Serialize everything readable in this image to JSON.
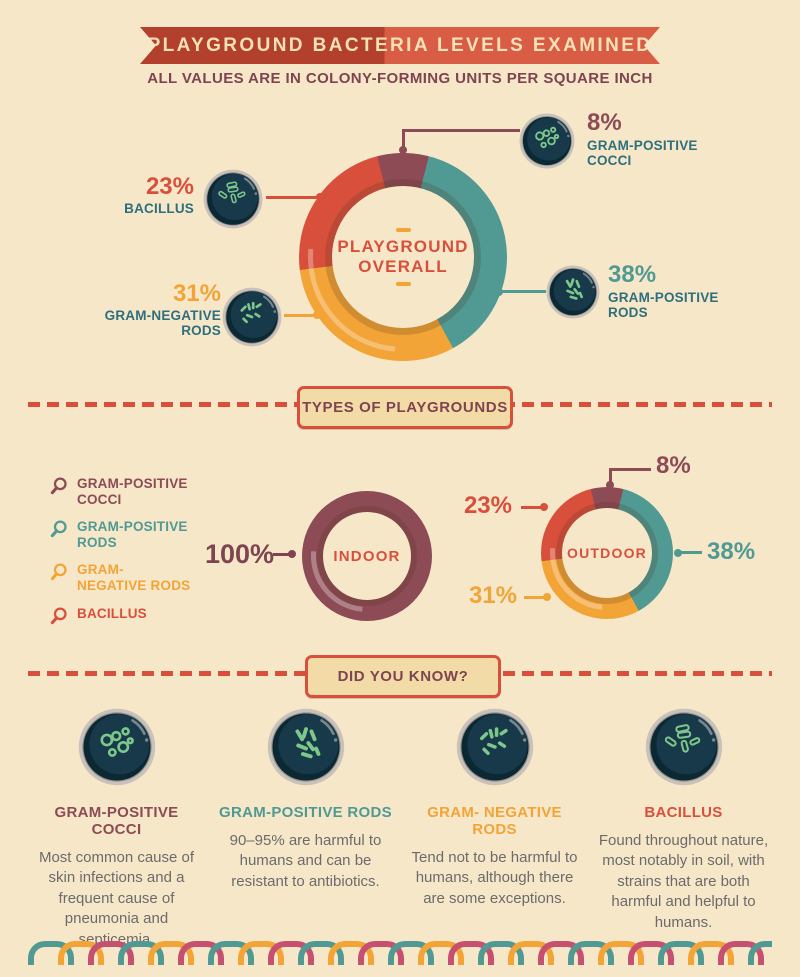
{
  "page": {
    "background": "#f7e7c9"
  },
  "palette": {
    "maroon": "#8c4b55",
    "teal": "#509a93",
    "orange": "#f2a437",
    "red": "#d8503c",
    "ribbon_dark": "#b33f2d",
    "ribbon_light": "#d95d45",
    "cream_text": "#f4e2b6",
    "heading_maroon": "#7e4450",
    "label_teal": "#2e6f7e",
    "body_gray": "#6b6b6b",
    "scallop_pink": "#c65070"
  },
  "header": {
    "title": "PLAYGROUND BACTERIA LEVELS EXAMINED",
    "subtitle": "ALL VALUES ARE IN COLONY-FORMING UNITS PER SQUARE INCH"
  },
  "chart_data": [
    {
      "type": "pie",
      "variant": "donut",
      "title": "PLAYGROUND OVERALL",
      "units": "percent of colony-forming units per square inch",
      "labels": [
        "GRAM-POSITIVE COCCI",
        "GRAM-POSITIVE RODS",
        "GRAM-NEGATIVE RODS",
        "BACILLUS"
      ],
      "values": [
        8,
        38,
        31,
        23
      ],
      "colors": [
        "#8c4b55",
        "#509a93",
        "#f2a437",
        "#d8503c"
      ]
    },
    {
      "type": "pie",
      "variant": "donut",
      "title": "INDOOR",
      "units": "percent of colony-forming units per square inch",
      "labels": [
        "GRAM-POSITIVE COCCI"
      ],
      "values": [
        100
      ],
      "colors": [
        "#8c4b55"
      ]
    },
    {
      "type": "pie",
      "variant": "donut",
      "title": "OUTDOOR",
      "units": "percent of colony-forming units per square inch",
      "labels": [
        "GRAM-POSITIVE COCCI",
        "GRAM-POSITIVE RODS",
        "GRAM-NEGATIVE RODS",
        "BACILLUS"
      ],
      "values": [
        8,
        38,
        31,
        23
      ],
      "colors": [
        "#8c4b55",
        "#509a93",
        "#f2a437",
        "#d8503c"
      ]
    }
  ],
  "overall": {
    "center_line1": "PLAYGROUND",
    "center_line2": "OVERALL",
    "callouts": [
      {
        "pct": "8%",
        "name": "GRAM-POSITIVE COCCI"
      },
      {
        "pct": "23%",
        "name": "BACILLUS"
      },
      {
        "pct": "31%",
        "name": "GRAM-NEGATIVE RODS"
      },
      {
        "pct": "38%",
        "name": "GRAM-POSITIVE RODS"
      }
    ]
  },
  "types": {
    "heading": "TYPES OF PLAYGROUNDS",
    "legend": [
      {
        "label": "GRAM-POSITIVE COCCI",
        "color": "#8c4b55"
      },
      {
        "label": "GRAM-POSITIVE RODS",
        "color": "#509a93"
      },
      {
        "label": "GRAM-NEGATIVE RODS",
        "color": "#f2a437"
      },
      {
        "label": "BACILLUS",
        "color": "#d8503c"
      }
    ],
    "indoor": {
      "pct": "100%",
      "title": "INDOOR"
    },
    "outdoor": {
      "title": "OUTDOOR",
      "pct_cocci": "8%",
      "pct_bacillus": "23%",
      "pct_gpr": "38%",
      "pct_gnr": "31%"
    }
  },
  "did_you_know": {
    "heading": "DID YOU KNOW?",
    "cards": [
      {
        "title": "GRAM-POSITIVE COCCI",
        "text": "Most common cause of skin infections and a frequent cause of pneumonia and septicemia."
      },
      {
        "title": "GRAM-POSITIVE RODS",
        "text": "90–95% are harmful to humans and can be resistant to antibiotics."
      },
      {
        "title": "GRAM- NEGATIVE RODS",
        "text": "Tend not to be harmful to humans, although there are some exceptions."
      },
      {
        "title": "BACILLUS",
        "text": "Found throughout nature, most notably in soil, with strains that are both harmful and helpful to humans."
      }
    ]
  },
  "footer": {
    "scallop_colors": [
      "#509a93",
      "#f2a437",
      "#c65070"
    ]
  }
}
